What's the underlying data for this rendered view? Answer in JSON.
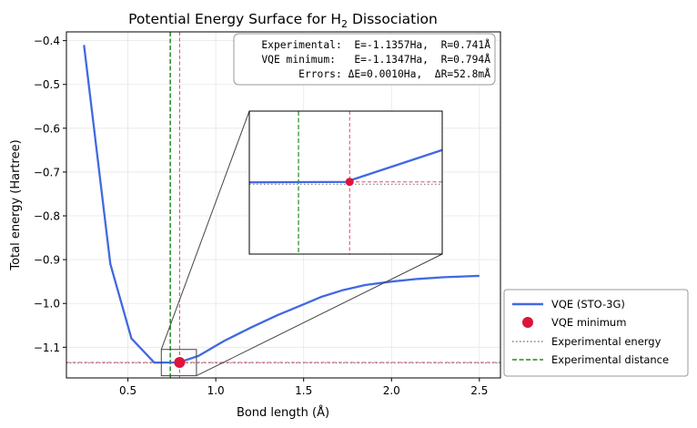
{
  "chart_data": {
    "type": "line",
    "title": "Potential Energy Surface for H",
    "title_subscript": "2",
    "title_suffix": " Dissociation",
    "xlabel": "Bond length (Å)",
    "ylabel": "Total energy (Hartree)",
    "xlim": [
      0.15,
      2.62
    ],
    "ylim": [
      -1.17,
      -0.38
    ],
    "xticks": [
      0.5,
      1.0,
      1.5,
      2.0,
      2.5
    ],
    "xtick_labels": [
      "0.5",
      "1.0",
      "1.5",
      "2.0",
      "2.5"
    ],
    "yticks": [
      -0.4,
      -0.5,
      -0.6,
      -0.7,
      -0.8,
      -0.9,
      -1.0,
      -1.1
    ],
    "ytick_labels": [
      "−0.4",
      "−0.5",
      "−0.6",
      "−0.7",
      "−0.8",
      "−0.9",
      "−1.0",
      "−1.1"
    ],
    "grid": true,
    "series": [
      {
        "name": "VQE (STO-3G)",
        "color": "#4169e1",
        "x": [
          0.25,
          0.4,
          0.52,
          0.65,
          0.79,
          0.9,
          1.05,
          1.2,
          1.35,
          1.5,
          1.6,
          1.72,
          1.85,
          2.0,
          2.15,
          2.3,
          2.5
        ],
        "y": [
          -0.41,
          -0.91,
          -1.08,
          -1.135,
          -1.1347,
          -1.12,
          -1.085,
          -1.055,
          -1.027,
          -1.002,
          -0.985,
          -0.97,
          -0.958,
          -0.95,
          -0.944,
          -0.94,
          -0.937
        ]
      }
    ],
    "vqe_minimum": {
      "name": "VQE minimum",
      "x": 0.794,
      "y": -1.1347,
      "color": "#dc143c"
    },
    "experimental_energy": {
      "name": "Experimental energy",
      "y": -1.1357,
      "color": "#808080"
    },
    "experimental_distance": {
      "name": "Experimental distance",
      "x": 0.741,
      "color": "#228b22"
    },
    "vqe_energy_line_color": "#dc143c",
    "annotation": {
      "lines": [
        "Experimental:  E=-1.1357Ha,  R=0.741Å",
        "VQE minimum:   E=-1.1347Ha,  R=0.794Å",
        "Errors: ΔE=0.0010Ha,  ΔR=52.8mÅ"
      ]
    },
    "inset": {
      "xlim": [
        0.69,
        0.89
      ],
      "ylim": [
        -1.165,
        -1.105
      ]
    },
    "legend": {
      "placement": "outside-lower-right",
      "entries": [
        "VQE (STO-3G)",
        "VQE minimum",
        "Experimental energy",
        "Experimental distance"
      ]
    }
  }
}
